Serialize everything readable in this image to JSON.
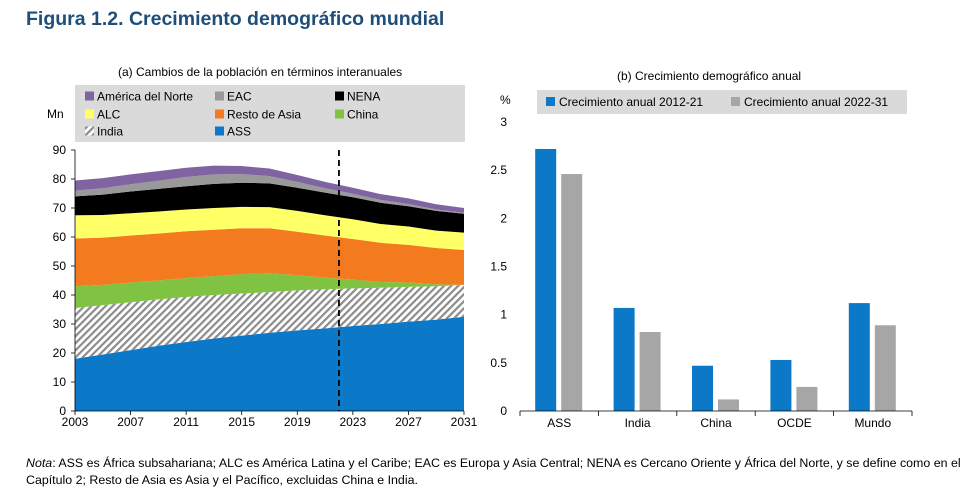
{
  "figure_title": "Figura 1.2. Crecimiento demográfico mundial",
  "colors": {
    "title": "#1f4e79",
    "ASS": "#0b78c8",
    "India_hatch": "#8c8c8c",
    "China": "#80c342",
    "Resto de Asia": "#f47a20",
    "ALC": "#ffff66",
    "NENA": "#000000",
    "EAC": "#999999",
    "America del Norte": "#8064a2",
    "series_2012_21": "#0b78c8",
    "series_2022_31": "#a6a6a6",
    "legend_bg": "#dadada"
  },
  "note": {
    "label": "Nota",
    "text": ": ASS es África subsahariana; ALC es América Latina y el Caribe; EAC es Europa y Asia Central; NENA es Cercano Oriente y África del Norte, y se define como en el Capítulo 2; Resto de Asia es Asia y el Pacífico, excluidas China e India."
  },
  "chart_data": [
    {
      "type": "area",
      "stacked": true,
      "title": "(a) Cambios de la población en términos interanuales",
      "ylabel": "Mn",
      "ylim": [
        0,
        90
      ],
      "yticks": [
        "0",
        "10",
        "20",
        "30",
        "40",
        "50",
        "60",
        "70",
        "80",
        "90"
      ],
      "xlim": [
        2003,
        2031
      ],
      "xticks": [
        "2003",
        "2007",
        "2011",
        "2015",
        "2019",
        "2023",
        "2027",
        "2031"
      ],
      "vline_year": 2022,
      "years": [
        2003,
        2005,
        2007,
        2009,
        2011,
        2013,
        2015,
        2017,
        2019,
        2021,
        2023,
        2025,
        2027,
        2029,
        2031
      ],
      "legend": [
        [
          "América del Norte",
          "EAC",
          "NENA"
        ],
        [
          "ALC",
          "Resto de Asia",
          "China"
        ],
        [
          "India",
          "ASS"
        ]
      ],
      "series": [
        {
          "name": "ASS",
          "key": "ASS",
          "values": [
            18.0,
            19.5,
            21.0,
            22.5,
            23.8,
            25.0,
            26.0,
            27.0,
            27.8,
            28.5,
            29.3,
            30.0,
            30.8,
            31.5,
            32.5
          ]
        },
        {
          "name": "India",
          "key": "India",
          "values": [
            17.5,
            17.0,
            16.5,
            16.0,
            15.5,
            15.0,
            14.5,
            14.0,
            13.8,
            13.5,
            13.0,
            12.5,
            12.0,
            11.5,
            11.0
          ]
        },
        {
          "name": "China",
          "key": "China",
          "values": [
            7.5,
            7.0,
            6.8,
            6.5,
            6.5,
            6.5,
            6.7,
            6.5,
            5.2,
            4.0,
            3.0,
            2.0,
            1.5,
            0.7,
            0.0
          ]
        },
        {
          "name": "Resto de Asia",
          "key": "Resto de Asia",
          "values": [
            16.5,
            16.3,
            16.2,
            16.2,
            16.2,
            16.0,
            15.8,
            15.5,
            15.0,
            14.5,
            14.0,
            13.5,
            13.0,
            12.5,
            12.0
          ]
        },
        {
          "name": "ALC",
          "key": "ALC",
          "values": [
            8.0,
            7.8,
            7.7,
            7.6,
            7.5,
            7.5,
            7.4,
            7.3,
            7.2,
            7.0,
            6.8,
            6.5,
            6.3,
            6.0,
            6.0
          ]
        },
        {
          "name": "NENA",
          "key": "NENA",
          "values": [
            6.5,
            7.0,
            7.5,
            7.8,
            8.0,
            8.3,
            8.3,
            8.2,
            8.0,
            7.8,
            7.6,
            7.3,
            7.0,
            6.8,
            6.5
          ]
        },
        {
          "name": "EAC",
          "key": "EAC",
          "values": [
            2.0,
            2.2,
            2.5,
            2.8,
            3.2,
            3.3,
            3.0,
            2.5,
            2.0,
            1.5,
            1.2,
            1.0,
            0.8,
            0.5,
            0.3
          ]
        },
        {
          "name": "América del Norte",
          "key": "America del Norte",
          "values": [
            3.5,
            3.5,
            3.4,
            3.3,
            3.2,
            3.0,
            2.8,
            2.6,
            2.4,
            2.2,
            2.1,
            2.0,
            1.9,
            1.8,
            1.7
          ]
        }
      ]
    },
    {
      "type": "bar",
      "title": "(b) Crecimiento demográfico anual",
      "ylabel": "%",
      "ylim": [
        0,
        3
      ],
      "yticks": [
        "0",
        "0.5",
        "1",
        "1.5",
        "2",
        "2.5",
        "3"
      ],
      "categories": [
        "ASS",
        "India",
        "China",
        "OCDE",
        "Mundo"
      ],
      "series": [
        {
          "name": "Crecimiento anual 2012-21",
          "key": "series_2012_21",
          "values": [
            2.72,
            1.07,
            0.47,
            0.53,
            1.12
          ]
        },
        {
          "name": "Crecimiento anual 2022-31",
          "key": "series_2022_31",
          "values": [
            2.46,
            0.82,
            0.12,
            0.25,
            0.89
          ]
        }
      ]
    }
  ]
}
